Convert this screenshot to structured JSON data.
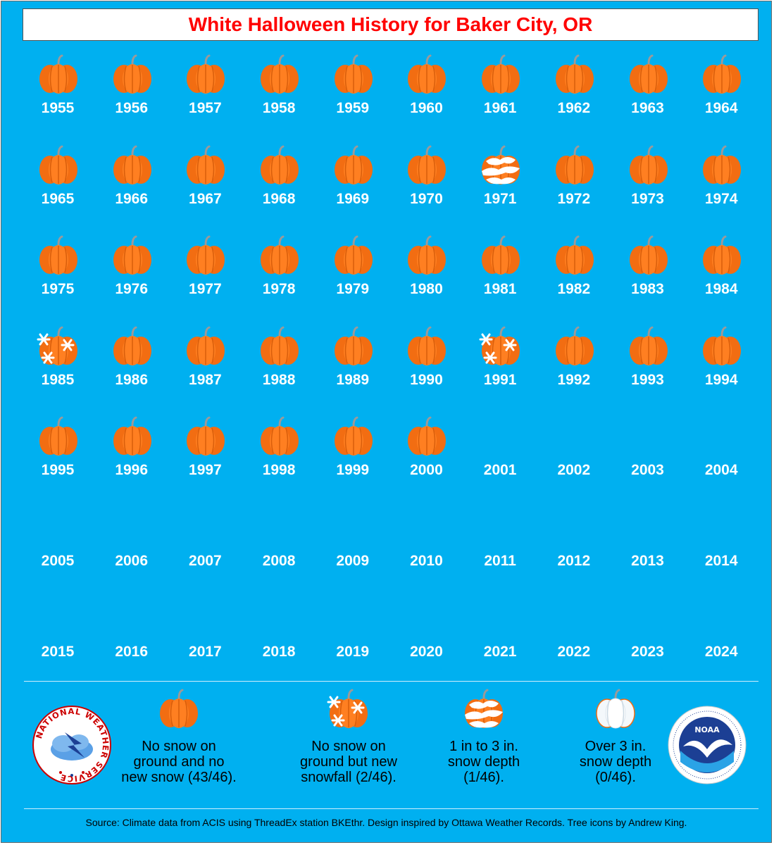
{
  "title": "White Halloween History for Baker City, OR",
  "colors": {
    "background": "#00b0f0",
    "title": "#ff0000",
    "pumpkin": "#ff7a1a",
    "snow": "#ffffff"
  },
  "years": [
    {
      "year": "1955",
      "icon": "pumpkin-icon"
    },
    {
      "year": "1956",
      "icon": "pumpkin-icon"
    },
    {
      "year": "1957",
      "icon": "pumpkin-icon"
    },
    {
      "year": "1958",
      "icon": "pumpkin-icon"
    },
    {
      "year": "1959",
      "icon": "pumpkin-icon"
    },
    {
      "year": "1960",
      "icon": "pumpkin-icon"
    },
    {
      "year": "1961",
      "icon": "pumpkin-icon"
    },
    {
      "year": "1962",
      "icon": "pumpkin-icon"
    },
    {
      "year": "1963",
      "icon": "pumpkin-icon"
    },
    {
      "year": "1964",
      "icon": "pumpkin-icon"
    },
    {
      "year": "1965",
      "icon": "pumpkin-icon"
    },
    {
      "year": "1966",
      "icon": "pumpkin-icon"
    },
    {
      "year": "1967",
      "icon": "pumpkin-icon"
    },
    {
      "year": "1968",
      "icon": "pumpkin-icon"
    },
    {
      "year": "1969",
      "icon": "pumpkin-icon"
    },
    {
      "year": "1970",
      "icon": "pumpkin-icon"
    },
    {
      "year": "1971",
      "icon": "snow-depth-pumpkin-icon"
    },
    {
      "year": "1972",
      "icon": "pumpkin-icon"
    },
    {
      "year": "1973",
      "icon": "pumpkin-icon"
    },
    {
      "year": "1974",
      "icon": "pumpkin-icon"
    },
    {
      "year": "1975",
      "icon": "pumpkin-icon"
    },
    {
      "year": "1976",
      "icon": "pumpkin-icon"
    },
    {
      "year": "1977",
      "icon": "pumpkin-icon"
    },
    {
      "year": "1978",
      "icon": "pumpkin-icon"
    },
    {
      "year": "1979",
      "icon": "pumpkin-icon"
    },
    {
      "year": "1980",
      "icon": "pumpkin-icon"
    },
    {
      "year": "1981",
      "icon": "pumpkin-icon"
    },
    {
      "year": "1982",
      "icon": "pumpkin-icon"
    },
    {
      "year": "1983",
      "icon": "pumpkin-icon"
    },
    {
      "year": "1984",
      "icon": "pumpkin-icon"
    },
    {
      "year": "1985",
      "icon": "snowfall-pumpkin-icon"
    },
    {
      "year": "1986",
      "icon": "pumpkin-icon"
    },
    {
      "year": "1987",
      "icon": "pumpkin-icon"
    },
    {
      "year": "1988",
      "icon": "pumpkin-icon"
    },
    {
      "year": "1989",
      "icon": "pumpkin-icon"
    },
    {
      "year": "1990",
      "icon": "pumpkin-icon"
    },
    {
      "year": "1991",
      "icon": "snowfall-pumpkin-icon"
    },
    {
      "year": "1992",
      "icon": "pumpkin-icon"
    },
    {
      "year": "1993",
      "icon": "pumpkin-icon"
    },
    {
      "year": "1994",
      "icon": "pumpkin-icon"
    },
    {
      "year": "1995",
      "icon": "pumpkin-icon"
    },
    {
      "year": "1996",
      "icon": "pumpkin-icon"
    },
    {
      "year": "1997",
      "icon": "pumpkin-icon"
    },
    {
      "year": "1998",
      "icon": "pumpkin-icon"
    },
    {
      "year": "1999",
      "icon": "pumpkin-icon"
    },
    {
      "year": "2000",
      "icon": "pumpkin-icon"
    },
    {
      "year": "2001",
      "icon": ""
    },
    {
      "year": "2002",
      "icon": ""
    },
    {
      "year": "2003",
      "icon": ""
    },
    {
      "year": "2004",
      "icon": ""
    },
    {
      "year": "2005",
      "icon": ""
    },
    {
      "year": "2006",
      "icon": ""
    },
    {
      "year": "2007",
      "icon": ""
    },
    {
      "year": "2008",
      "icon": ""
    },
    {
      "year": "2009",
      "icon": ""
    },
    {
      "year": "2010",
      "icon": ""
    },
    {
      "year": "2011",
      "icon": ""
    },
    {
      "year": "2012",
      "icon": ""
    },
    {
      "year": "2013",
      "icon": ""
    },
    {
      "year": "2014",
      "icon": ""
    },
    {
      "year": "2015",
      "icon": ""
    },
    {
      "year": "2016",
      "icon": ""
    },
    {
      "year": "2017",
      "icon": ""
    },
    {
      "year": "2018",
      "icon": ""
    },
    {
      "year": "2019",
      "icon": ""
    },
    {
      "year": "2020",
      "icon": ""
    },
    {
      "year": "2021",
      "icon": ""
    },
    {
      "year": "2022",
      "icon": ""
    },
    {
      "year": "2023",
      "icon": ""
    },
    {
      "year": "2024",
      "icon": ""
    }
  ],
  "legend": [
    {
      "icon": "pumpkin-icon",
      "lines": [
        "No snow on",
        "ground and no",
        "new snow (43/46)."
      ]
    },
    {
      "icon": "snowfall-pumpkin-icon",
      "lines": [
        "No snow on",
        "ground but new",
        "snowfall (2/46)."
      ]
    },
    {
      "icon": "snow-depth-pumpkin-icon",
      "lines": [
        "1 in to 3 in.",
        "snow depth",
        "(1/46)."
      ]
    },
    {
      "icon": "white-pumpkin-icon",
      "lines": [
        "Over 3 in.",
        "snow depth",
        "(0/46)."
      ]
    }
  ],
  "logos": {
    "nws": {
      "icon": "nws-logo-icon",
      "text": "NATIONAL WEATHER SERVICE"
    },
    "noaa": {
      "icon": "noaa-logo-icon",
      "text": "NOAA"
    }
  },
  "source": "Source: Climate data from ACIS using ThreadEx station BKEthr. Design inspired by Ottawa Weather Records. Tree icons by Andrew King."
}
